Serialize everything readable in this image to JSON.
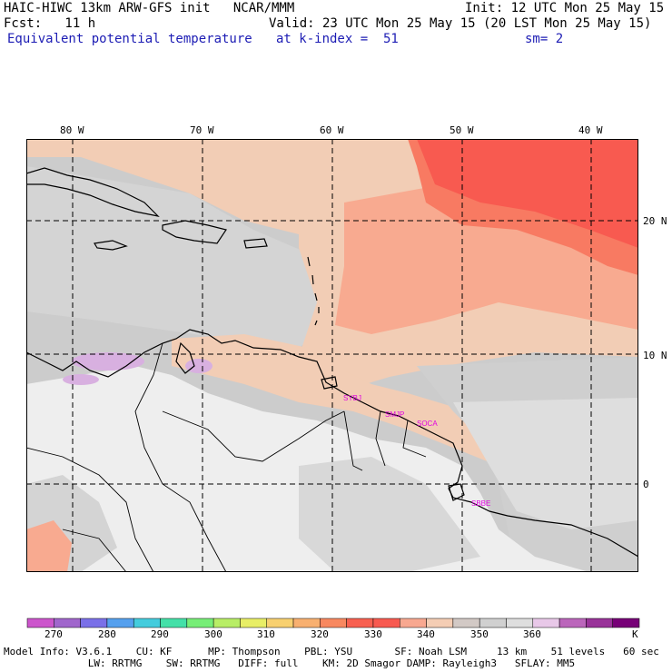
{
  "header": {
    "line1_left": "HAIC-HIWC 13km ARW-GFS init   NCAR/MMM",
    "line1_right": "Init: 12 UTC Mon 25 May 15",
    "line2_left": "Fcst:   11 h",
    "line2_right": "Valid: 23 UTC Mon 25 May 15 (20 LST Mon 25 May 15)",
    "line3_left": "Equivalent potential temperature",
    "line3_mid": "at k-index =  51",
    "line3_right": "sm= 2"
  },
  "lon_labels": [
    "80 W",
    "70 W",
    "60 W",
    "50 W",
    "40 W"
  ],
  "lat_labels": [
    "20 N",
    "10 N",
    "0"
  ],
  "stations": [
    "SYBJ",
    "SMJP",
    "SOCA",
    "SBBE"
  ],
  "colorbar": {
    "labels": [
      "270",
      "280",
      "290",
      "300",
      "310",
      "320",
      "330",
      "340",
      "350",
      "360"
    ],
    "unit": "K",
    "colors": [
      "#cc55cc",
      "#a066cc",
      "#7a70e8",
      "#55a0ee",
      "#44ccdd",
      "#44e0a8",
      "#77ee77",
      "#b8ee66",
      "#e8ee66",
      "#f8d070",
      "#f8b070",
      "#f88860",
      "#f86050",
      "#f85a50",
      "#f8a890",
      "#f4cdb4",
      "#d2c9c5",
      "#d0d0d0",
      "#dedede",
      "#e8c8e8",
      "#bb66bb",
      "#993399",
      "#770077"
    ]
  },
  "footer": {
    "line1": "Model Info: V3.6.1    CU: KF      MP: Thompson    PBL: YSU       SF: Noah LSM     13 km    51 levels   60 sec",
    "line2": "              LW: RRTMG    SW: RRTMG   DIFF: full    KM: 2D Smagor DAMP: Rayleigh3   SFLAY: MM5"
  },
  "field_colors": {
    "land_light": "#eeeeee",
    "land_gray": "#d4d4d4",
    "sea_gray": "#cccccc",
    "mid_gray": "#dcdcdc",
    "tan": "#f2cdb5",
    "peach": "#f8aa90",
    "salmon": "#f87a62",
    "red": "#f85a50",
    "lilac": "#d8b0e0"
  }
}
